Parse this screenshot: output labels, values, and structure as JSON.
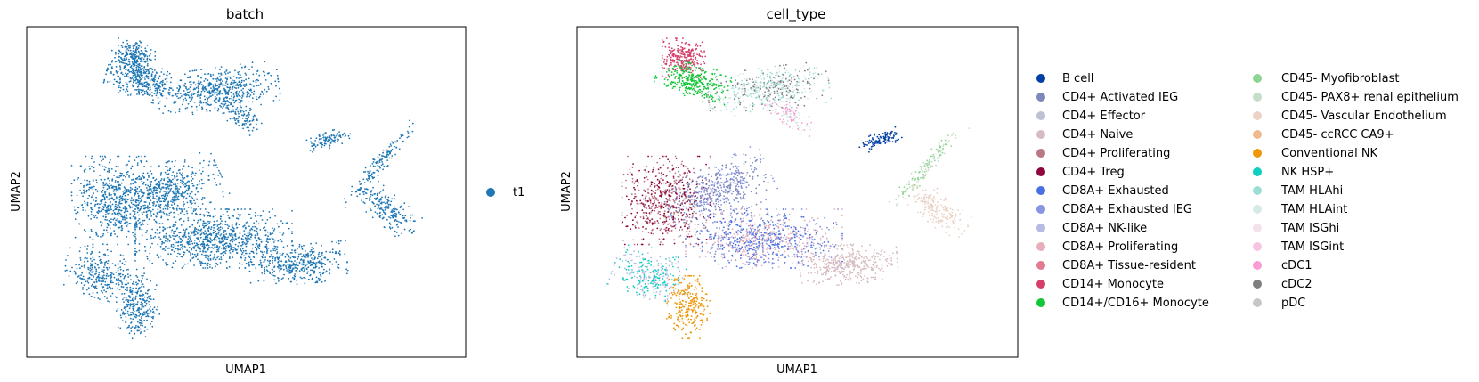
{
  "chart_data": [
    {
      "type": "scatter",
      "title": "batch",
      "xlabel": "UMAP1",
      "ylabel": "UMAP2",
      "grid": false,
      "ticks": false,
      "legend_placement": "right",
      "series": [
        {
          "name": "t1",
          "color": "#1f77b4"
        }
      ]
    },
    {
      "type": "scatter",
      "title": "cell_type",
      "xlabel": "UMAP1",
      "ylabel": "UMAP2",
      "grid": false,
      "ticks": false,
      "legend_placement": "right",
      "series": [
        {
          "name": "B cell",
          "color": "#023fa5"
        },
        {
          "name": "CD4+ Activated IEG",
          "color": "#7d87b9"
        },
        {
          "name": "CD4+ Effector",
          "color": "#bec1d4"
        },
        {
          "name": "CD4+ Naive",
          "color": "#d6bcc0"
        },
        {
          "name": "CD4+ Proliferating",
          "color": "#bb7784"
        },
        {
          "name": "CD4+ Treg",
          "color": "#8e063b"
        },
        {
          "name": "CD8A+ Exhausted",
          "color": "#4a6fe3"
        },
        {
          "name": "CD8A+ Exhausted IEG",
          "color": "#8595e1"
        },
        {
          "name": "CD8A+ NK-like",
          "color": "#b5bbe3"
        },
        {
          "name": "CD8A+ Proliferating",
          "color": "#e6afb9"
        },
        {
          "name": "CD8A+ Tissue-resident",
          "color": "#e07b91"
        },
        {
          "name": "CD14+ Monocyte",
          "color": "#d33f6a"
        },
        {
          "name": "CD14+/CD16+ Monocyte",
          "color": "#11c638"
        },
        {
          "name": "CD45- Myofibroblast",
          "color": "#8dd593"
        },
        {
          "name": "CD45- PAX8+ renal epithelium",
          "color": "#c6dec7"
        },
        {
          "name": "CD45- Vascular Endothelium",
          "color": "#ead3c6"
        },
        {
          "name": "CD45- ccRCC CA9+",
          "color": "#f0b98d"
        },
        {
          "name": "Conventional NK",
          "color": "#ef9708"
        },
        {
          "name": "NK HSP+",
          "color": "#0fcfc0"
        },
        {
          "name": "TAM HLAhi",
          "color": "#9cded6"
        },
        {
          "name": "TAM HLAint",
          "color": "#d5eae7"
        },
        {
          "name": "TAM ISGhi",
          "color": "#f3e1eb"
        },
        {
          "name": "TAM ISGint",
          "color": "#f6c4e1"
        },
        {
          "name": "cDC1",
          "color": "#f79cd4"
        },
        {
          "name": "cDC2",
          "color": "#7f7f7f"
        },
        {
          "name": "pDC",
          "color": "#c7c7c7"
        }
      ]
    }
  ]
}
